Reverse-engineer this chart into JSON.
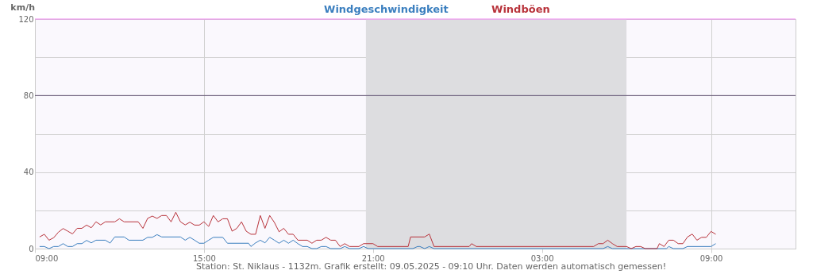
{
  "chart_data": {
    "type": "line",
    "ylabel": "km/h",
    "legend": "top",
    "grid": true,
    "xlim": [
      "2025-05-08T09:00",
      "2025-05-09T12:00"
    ],
    "ylim": [
      0,
      120
    ],
    "xticks": [
      {
        "value": "2025-05-08T09:00",
        "label": "09:00"
      },
      {
        "value": "2025-05-08T15:00",
        "label": "15:00"
      },
      {
        "value": "2025-05-08T21:00",
        "label": "21:00"
      },
      {
        "value": "2025-05-09T03:00",
        "label": "03:00"
      },
      {
        "value": "2025-05-09T09:00",
        "label": "09:00"
      }
    ],
    "yticks": [
      0,
      {
        "value": 20,
        "label": null
      },
      40,
      {
        "value": 60,
        "label": null
      },
      80,
      {
        "value": 100,
        "label": null
      },
      120
    ],
    "ref_lines": [
      {
        "axis": "y",
        "value": 80,
        "label": null,
        "color": "#5a4a6a"
      },
      {
        "axis": "y",
        "value": 120,
        "label": null,
        "color": "#ee82ee"
      }
    ],
    "bands": [
      {
        "axis": "x",
        "from": "2025-05-08T20:45",
        "to": "2025-05-09T06:00",
        "label": null,
        "color": "#dddde0"
      }
    ],
    "series": [
      {
        "name": "Windgeschwindigkeit",
        "color": "#3b7fbf",
        "x": [
          "2025-05-08T09:10",
          "2025-05-08T09:20",
          "2025-05-08T09:30",
          "2025-05-08T09:40",
          "2025-05-08T09:50",
          "2025-05-08T10:00",
          "2025-05-08T10:10",
          "2025-05-08T10:20",
          "2025-05-08T10:30",
          "2025-05-08T10:40",
          "2025-05-08T10:50",
          "2025-05-08T11:00",
          "2025-05-08T11:10",
          "2025-05-08T11:30",
          "2025-05-08T11:40",
          "2025-05-08T11:50",
          "2025-05-08T12:10",
          "2025-05-08T12:20",
          "2025-05-08T12:50",
          "2025-05-08T13:00",
          "2025-05-08T13:10",
          "2025-05-08T13:20",
          "2025-05-08T13:30",
          "2025-05-08T14:10",
          "2025-05-08T14:20",
          "2025-05-08T14:30",
          "2025-05-08T14:40",
          "2025-05-08T14:50",
          "2025-05-08T15:00",
          "2025-05-08T15:10",
          "2025-05-08T15:20",
          "2025-05-08T15:40",
          "2025-05-08T15:50",
          "2025-05-08T16:35",
          "2025-05-08T16:40",
          "2025-05-08T16:50",
          "2025-05-08T17:00",
          "2025-05-08T17:10",
          "2025-05-08T17:20",
          "2025-05-08T17:30",
          "2025-05-08T17:40",
          "2025-05-08T17:50",
          "2025-05-08T18:00",
          "2025-05-08T18:10",
          "2025-05-08T18:20",
          "2025-05-08T18:30",
          "2025-05-08T18:40",
          "2025-05-08T18:50",
          "2025-05-08T19:00",
          "2025-05-08T19:10",
          "2025-05-08T19:20",
          "2025-05-08T19:30",
          "2025-05-08T19:50",
          "2025-05-08T20:00",
          "2025-05-08T20:10",
          "2025-05-08T20:30",
          "2025-05-08T20:40",
          "2025-05-08T20:50",
          "2025-05-08T22:25",
          "2025-05-08T22:35",
          "2025-05-08T22:40",
          "2025-05-08T22:50",
          "2025-05-08T23:00",
          "2025-05-08T23:10",
          "2025-05-09T05:10",
          "2025-05-09T05:20",
          "2025-05-09T05:30",
          "2025-05-09T07:25",
          "2025-05-09T07:30",
          "2025-05-09T07:40",
          "2025-05-09T08:00",
          "2025-05-09T08:10",
          "2025-05-09T09:00",
          "2025-05-09T09:10"
        ],
        "values": [
          1.1,
          1.1,
          0,
          1.1,
          1.1,
          2.6,
          1.1,
          1.1,
          2.6,
          2.6,
          4.3,
          3.0,
          4.4,
          4.4,
          2.9,
          6.1,
          6.1,
          4.4,
          4.4,
          5.9,
          5.9,
          7.3,
          6.1,
          6.1,
          4.4,
          5.9,
          4.4,
          2.8,
          2.8,
          4.4,
          5.9,
          5.9,
          2.8,
          2.8,
          1.1,
          3.0,
          4.4,
          3.0,
          5.9,
          4.4,
          2.8,
          4.4,
          2.8,
          4.4,
          2.6,
          1.1,
          1.1,
          0,
          0,
          1.1,
          1.1,
          0,
          0,
          1.1,
          0,
          0,
          1.1,
          0,
          0,
          1.1,
          1.1,
          0,
          1.1,
          0,
          0,
          1.1,
          0,
          0,
          1.1,
          0,
          0,
          1.1,
          1.1,
          2.6
        ]
      },
      {
        "name": "Windböen",
        "color": "#b8323a",
        "x": [
          "2025-05-08T09:10",
          "2025-05-08T09:20",
          "2025-05-08T09:30",
          "2025-05-08T09:40",
          "2025-05-08T09:50",
          "2025-05-08T10:00",
          "2025-05-08T10:10",
          "2025-05-08T10:20",
          "2025-05-08T10:30",
          "2025-05-08T10:40",
          "2025-05-08T10:50",
          "2025-05-08T11:00",
          "2025-05-08T11:10",
          "2025-05-08T11:20",
          "2025-05-08T11:30",
          "2025-05-08T11:50",
          "2025-05-08T12:00",
          "2025-05-08T12:10",
          "2025-05-08T12:40",
          "2025-05-08T12:50",
          "2025-05-08T13:00",
          "2025-05-08T13:10",
          "2025-05-08T13:20",
          "2025-05-08T13:30",
          "2025-05-08T13:40",
          "2025-05-08T13:50",
          "2025-05-08T14:00",
          "2025-05-08T14:10",
          "2025-05-08T14:20",
          "2025-05-08T14:30",
          "2025-05-08T14:40",
          "2025-05-08T14:50",
          "2025-05-08T15:00",
          "2025-05-08T15:10",
          "2025-05-08T15:20",
          "2025-05-08T15:30",
          "2025-05-08T15:40",
          "2025-05-08T15:50",
          "2025-05-08T16:00",
          "2025-05-08T16:10",
          "2025-05-08T16:20",
          "2025-05-08T16:30",
          "2025-05-08T16:40",
          "2025-05-08T16:50",
          "2025-05-08T17:00",
          "2025-05-08T17:10",
          "2025-05-08T17:20",
          "2025-05-08T17:30",
          "2025-05-08T17:40",
          "2025-05-08T17:50",
          "2025-05-08T18:00",
          "2025-05-08T18:10",
          "2025-05-08T18:20",
          "2025-05-08T18:40",
          "2025-05-08T18:50",
          "2025-05-08T19:00",
          "2025-05-08T19:10",
          "2025-05-08T19:20",
          "2025-05-08T19:30",
          "2025-05-08T19:40",
          "2025-05-08T19:50",
          "2025-05-08T20:00",
          "2025-05-08T20:10",
          "2025-05-08T20:30",
          "2025-05-08T20:40",
          "2025-05-08T21:00",
          "2025-05-08T21:10",
          "2025-05-08T22:15",
          "2025-05-08T22:20",
          "2025-05-08T22:50",
          "2025-05-08T23:00",
          "2025-05-08T23:10",
          "2025-05-09T00:25",
          "2025-05-09T00:30",
          "2025-05-09T00:40",
          "2025-05-09T04:50",
          "2025-05-09T05:00",
          "2025-05-09T05:10",
          "2025-05-09T05:20",
          "2025-05-09T05:30",
          "2025-05-09T05:40",
          "2025-05-09T06:00",
          "2025-05-09T06:10",
          "2025-05-09T06:20",
          "2025-05-09T06:30",
          "2025-05-09T06:40",
          "2025-05-09T07:05",
          "2025-05-09T07:10",
          "2025-05-09T07:20",
          "2025-05-09T07:30",
          "2025-05-09T07:40",
          "2025-05-09T07:50",
          "2025-05-09T08:00",
          "2025-05-09T08:10",
          "2025-05-09T08:20",
          "2025-05-09T08:30",
          "2025-05-09T08:40",
          "2025-05-09T08:50",
          "2025-05-09T09:00",
          "2025-05-09T09:10"
        ],
        "values": [
          6.1,
          7.5,
          4.4,
          5.7,
          8.6,
          10.5,
          9.1,
          7.7,
          10.6,
          10.6,
          12.3,
          10.9,
          14.0,
          12.4,
          14.0,
          14.0,
          15.6,
          14.0,
          14.0,
          10.6,
          15.8,
          17.0,
          15.8,
          17.3,
          17.3,
          14.0,
          19.0,
          14.0,
          12.4,
          13.8,
          12.3,
          12.3,
          14.0,
          11.6,
          17.3,
          14.0,
          15.6,
          15.6,
          9.1,
          10.6,
          14.0,
          9.1,
          7.5,
          7.5,
          17.3,
          10.6,
          17.3,
          13.7,
          8.8,
          10.6,
          7.5,
          7.5,
          4.4,
          4.4,
          2.8,
          4.4,
          4.4,
          5.9,
          4.4,
          4.4,
          1.1,
          2.6,
          1.1,
          1.1,
          2.6,
          2.6,
          1.1,
          1.1,
          6.1,
          6.1,
          7.6,
          1.1,
          1.1,
          2.6,
          1.1,
          1.1,
          2.6,
          2.6,
          4.4,
          2.6,
          1.1,
          1.1,
          0,
          1.1,
          1.1,
          0,
          0,
          2.6,
          1.1,
          4.4,
          4.4,
          2.6,
          2.6,
          6.1,
          7.6,
          4.4,
          5.9,
          5.9,
          9.0,
          7.5
        ]
      }
    ],
    "annotations": [
      "Station: St. Niklaus - 1132m. Grafik erstellt: 09.05.2025 - 09:10 Uhr. Daten werden automatisch gemessen!"
    ]
  }
}
